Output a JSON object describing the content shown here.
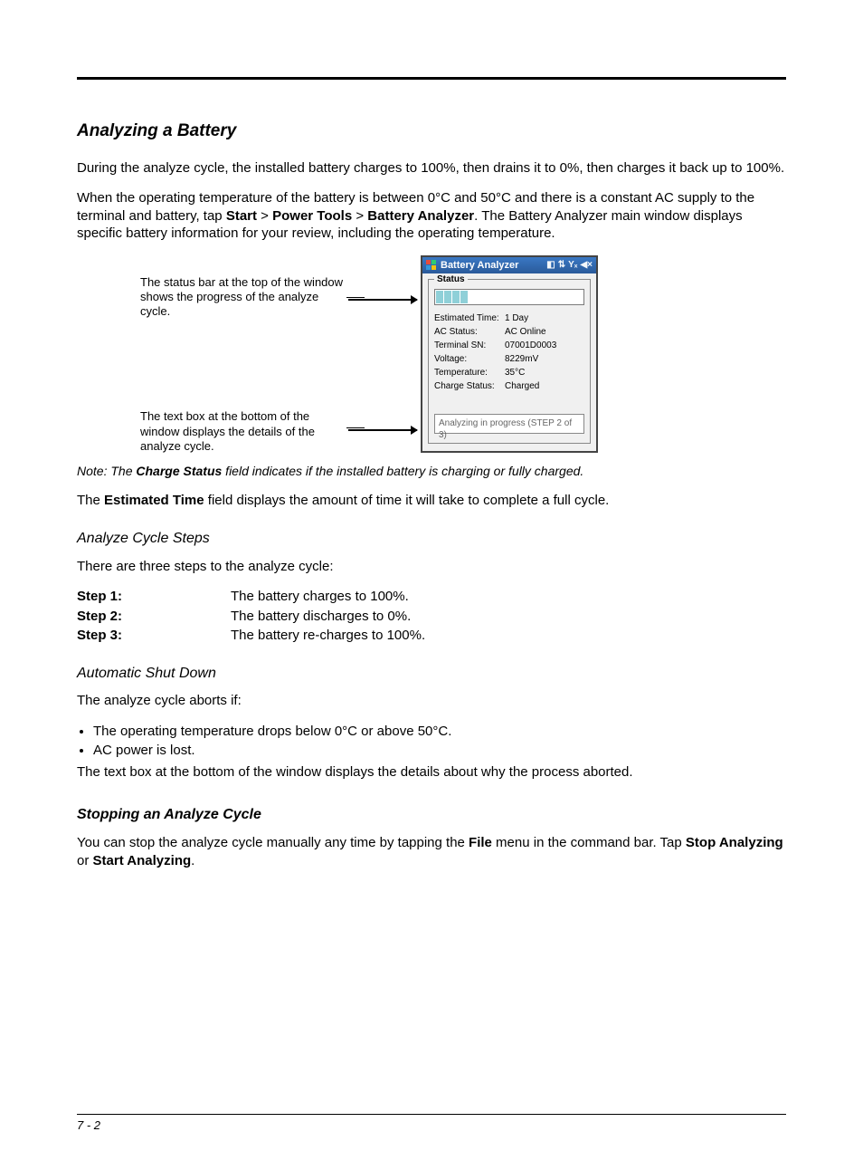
{
  "headings": {
    "analyzing": "Analyzing a Battery",
    "cycle_steps": "Analyze Cycle Steps",
    "autoshut": "Automatic Shut Down",
    "stopping": "Stopping an Analyze Cycle"
  },
  "paragraphs": {
    "p1": "During the analyze cycle, the installed battery charges to 100%, then drains it to 0%, then charges it back up to 100%.",
    "p2_pre": "When the operating temperature of the battery is between 0°C and 50°C and there is a constant AC supply to the terminal and battery, tap ",
    "p2_s1": "Start",
    "p2_gt1": " > ",
    "p2_s2": "Power Tools",
    "p2_gt2": " > ",
    "p2_s3": "Battery Analyzer",
    "p2_post": ". The Battery Analyzer main window displays specific battery information for your review, including the operating temperature.",
    "note_pre": "Note:  The ",
    "note_b": "Charge Status",
    "note_post": " field indicates if the installed battery is charging or fully charged.",
    "est_pre": "The ",
    "est_b": "Estimated Time",
    "est_post": " field displays the amount of time it will take to complete a full cycle.",
    "steps_intro": "There are three steps to the analyze cycle:",
    "aborts_intro": "The analyze cycle aborts if:",
    "abort_after": "The text box at the bottom of the window displays the details about why the process aborted.",
    "stop_pre": "You can stop the analyze cycle manually any time by tapping the ",
    "stop_b1": "File",
    "stop_mid": " menu in the command bar. Tap ",
    "stop_b2": "Stop Analyzing",
    "stop_or": " or ",
    "stop_b3": "Start Analyzing",
    "stop_end": "."
  },
  "callouts": {
    "c1": "The status bar at the top of the window shows the progress of the analyze cycle.",
    "c2": "The text box at the bottom of the window displays the details of the analyze cycle."
  },
  "screenshot": {
    "title": "Battery Analyzer",
    "titlebar_bg": "#2a5a9a",
    "status_legend": "Status",
    "progress_segments": 4,
    "progress_color": "#8fd0d8",
    "fields": [
      {
        "k": "Estimated Time:",
        "v": "1 Day"
      },
      {
        "k": "AC Status:",
        "v": "AC Online"
      },
      {
        "k": "Terminal SN:",
        "v": "07001D0003"
      },
      {
        "k": "Voltage:",
        "v": "8229mV"
      },
      {
        "k": "Temperature:",
        "v": "35°C"
      },
      {
        "k": "Charge Status:",
        "v": "Charged"
      }
    ],
    "status_text": "Analyzing in progress (STEP 2 of 3)"
  },
  "steps": [
    {
      "label": "Step 1:",
      "text": "The battery charges to 100%."
    },
    {
      "label": "Step 2:",
      "text": "The battery discharges to 0%."
    },
    {
      "label": "Step 3:",
      "text": "The battery re-charges to 100%."
    }
  ],
  "aborts": [
    "The operating temperature drops below 0°C or above 50°C.",
    "AC power is lost."
  ],
  "footer": "7 - 2"
}
